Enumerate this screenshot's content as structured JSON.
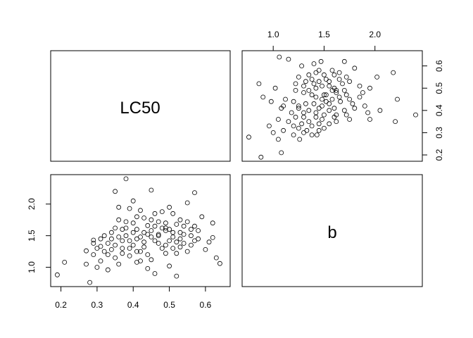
{
  "chart_data": {
    "type": "scatter",
    "layout": "pairs-matrix",
    "variables": [
      "LC50",
      "b"
    ],
    "ranges": {
      "LC50": [
        0.19,
        0.65
      ],
      "b": [
        0.76,
        2.4
      ]
    },
    "ticks": {
      "LC50": [
        0.2,
        0.3,
        0.4,
        0.5,
        0.6
      ],
      "b": [
        1.0,
        1.5,
        2.0
      ]
    },
    "tick_labels": {
      "LC50": [
        "0.2",
        "0.3",
        "0.4",
        "0.5",
        "0.6"
      ],
      "b": [
        "1.0",
        "1.5",
        "2.0"
      ]
    },
    "grid": false,
    "points": [
      [
        0.28,
        0.76
      ],
      [
        0.19,
        0.88
      ],
      [
        0.21,
        1.08
      ],
      [
        0.27,
        1.26
      ],
      [
        0.29,
        1.43
      ],
      [
        0.31,
        1.33
      ],
      [
        0.32,
        1.5
      ],
      [
        0.3,
        1.0
      ],
      [
        0.33,
        1.2
      ],
      [
        0.34,
        1.45
      ],
      [
        0.35,
        1.62
      ],
      [
        0.36,
        1.05
      ],
      [
        0.37,
        1.3
      ],
      [
        0.38,
        1.72
      ],
      [
        0.38,
        2.4
      ],
      [
        0.39,
        1.93
      ],
      [
        0.4,
        1.55
      ],
      [
        0.41,
        1.8
      ],
      [
        0.42,
        1.25
      ],
      [
        0.43,
        1.4
      ],
      [
        0.44,
        1.66
      ],
      [
        0.45,
        2.22
      ],
      [
        0.46,
        1.85
      ],
      [
        0.47,
        1.52
      ],
      [
        0.48,
        1.3
      ],
      [
        0.49,
        1.62
      ],
      [
        0.5,
        1.95
      ],
      [
        0.51,
        1.48
      ],
      [
        0.52,
        1.22
      ],
      [
        0.53,
        1.75
      ],
      [
        0.54,
        1.38
      ],
      [
        0.55,
        2.02
      ],
      [
        0.56,
        1.6
      ],
      [
        0.57,
        2.18
      ],
      [
        0.58,
        1.45
      ],
      [
        0.6,
        1.28
      ],
      [
        0.62,
        1.7
      ],
      [
        0.63,
        1.15
      ],
      [
        0.64,
        1.06
      ],
      [
        0.62,
        1.47
      ],
      [
        0.35,
        2.2
      ],
      [
        0.36,
        1.95
      ],
      [
        0.4,
        2.05
      ],
      [
        0.42,
        1.1
      ],
      [
        0.44,
        0.98
      ],
      [
        0.46,
        0.9
      ],
      [
        0.5,
        1.02
      ],
      [
        0.52,
        0.86
      ],
      [
        0.31,
        1.1
      ],
      [
        0.33,
        0.96
      ],
      [
        0.27,
        1.05
      ],
      [
        0.29,
        1.2
      ],
      [
        0.34,
        1.55
      ],
      [
        0.37,
        1.42
      ],
      [
        0.39,
        1.18
      ],
      [
        0.41,
        1.6
      ],
      [
        0.43,
        1.78
      ],
      [
        0.45,
        1.48
      ],
      [
        0.47,
        1.72
      ],
      [
        0.49,
        1.35
      ],
      [
        0.51,
        1.85
      ],
      [
        0.53,
        1.55
      ],
      [
        0.55,
        1.25
      ],
      [
        0.57,
        1.65
      ],
      [
        0.59,
        1.8
      ],
      [
        0.61,
        1.4
      ],
      [
        0.3,
        1.3
      ],
      [
        0.32,
        1.25
      ],
      [
        0.36,
        1.75
      ],
      [
        0.38,
        1.5
      ],
      [
        0.4,
        1.35
      ],
      [
        0.42,
        1.9
      ],
      [
        0.44,
        1.2
      ],
      [
        0.46,
        1.65
      ],
      [
        0.48,
        1.88
      ],
      [
        0.5,
        1.42
      ],
      [
        0.52,
        1.68
      ],
      [
        0.54,
        1.52
      ],
      [
        0.56,
        1.35
      ],
      [
        0.58,
        1.58
      ],
      [
        0.35,
        1.15
      ],
      [
        0.37,
        1.6
      ],
      [
        0.39,
        1.42
      ],
      [
        0.41,
        1.25
      ],
      [
        0.43,
        1.55
      ],
      [
        0.45,
        1.75
      ],
      [
        0.47,
        1.38
      ],
      [
        0.49,
        1.58
      ],
      [
        0.51,
        1.3
      ],
      [
        0.53,
        1.45
      ],
      [
        0.55,
        1.72
      ],
      [
        0.33,
        1.38
      ],
      [
        0.36,
        1.48
      ],
      [
        0.4,
        1.7
      ],
      [
        0.44,
        1.52
      ],
      [
        0.48,
        1.62
      ],
      [
        0.52,
        1.4
      ],
      [
        0.56,
        1.5
      ],
      [
        0.34,
        1.28
      ],
      [
        0.38,
        1.62
      ],
      [
        0.42,
        1.48
      ],
      [
        0.46,
        1.42
      ],
      [
        0.5,
        1.6
      ],
      [
        0.54,
        1.65
      ],
      [
        0.39,
        1.3
      ],
      [
        0.41,
        1.45
      ],
      [
        0.43,
        1.32
      ],
      [
        0.45,
        1.58
      ],
      [
        0.47,
        1.5
      ],
      [
        0.49,
        1.7
      ],
      [
        0.51,
        1.55
      ],
      [
        0.37,
        1.22
      ],
      [
        0.35,
        1.35
      ],
      [
        0.31,
        1.45
      ],
      [
        0.29,
        1.38
      ],
      [
        0.41,
        1.08
      ],
      [
        0.45,
        1.12
      ],
      [
        0.49,
        1.22
      ],
      [
        0.53,
        1.32
      ],
      [
        0.57,
        1.42
      ]
    ]
  }
}
